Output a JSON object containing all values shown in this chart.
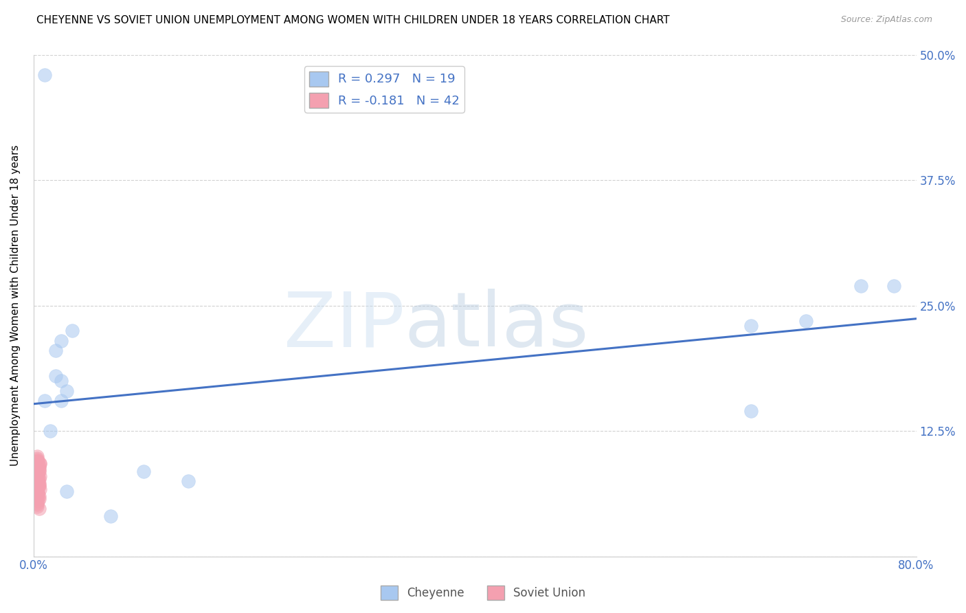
{
  "title": "CHEYENNE VS SOVIET UNION UNEMPLOYMENT AMONG WOMEN WITH CHILDREN UNDER 18 YEARS CORRELATION CHART",
  "source": "Source: ZipAtlas.com",
  "ylabel": "Unemployment Among Women with Children Under 18 years",
  "xlim": [
    0,
    0.8
  ],
  "ylim": [
    0,
    0.5
  ],
  "xticks": [
    0.0,
    0.1,
    0.2,
    0.3,
    0.4,
    0.5,
    0.6,
    0.7,
    0.8
  ],
  "xtick_labels": [
    "0.0%",
    "",
    "",
    "",
    "",
    "",
    "",
    "",
    "80.0%"
  ],
  "ytick_labels": [
    "",
    "12.5%",
    "25.0%",
    "37.5%",
    "50.0%"
  ],
  "yticks": [
    0.0,
    0.125,
    0.25,
    0.375,
    0.5
  ],
  "cheyenne_color": "#a8c8f0",
  "soviet_color": "#f4a0b0",
  "trend_color_cheyenne": "#4472c4",
  "trend_color_soviet": "#e07090",
  "cheyenne_R": 0.297,
  "cheyenne_N": 19,
  "soviet_R": -0.181,
  "soviet_N": 42,
  "legend_label_cheyenne": "Cheyenne",
  "legend_label_soviet": "Soviet Union",
  "cheyenne_x": [
    0.01,
    0.02,
    0.025,
    0.035,
    0.02,
    0.025,
    0.015,
    0.025,
    0.03,
    0.1,
    0.65,
    0.7,
    0.78,
    0.65,
    0.01,
    0.03,
    0.14,
    0.07,
    0.75
  ],
  "cheyenne_y": [
    0.155,
    0.205,
    0.215,
    0.225,
    0.18,
    0.175,
    0.125,
    0.155,
    0.165,
    0.085,
    0.145,
    0.235,
    0.27,
    0.23,
    0.48,
    0.065,
    0.075,
    0.04,
    0.27
  ],
  "soviet_x": [
    0.003,
    0.004,
    0.003,
    0.005,
    0.004,
    0.006,
    0.003,
    0.004,
    0.005,
    0.003,
    0.004,
    0.005,
    0.004,
    0.003,
    0.006,
    0.005,
    0.004,
    0.003,
    0.005,
    0.004,
    0.003,
    0.005,
    0.004,
    0.006,
    0.003,
    0.004,
    0.005,
    0.003,
    0.004,
    0.005,
    0.004,
    0.003,
    0.005,
    0.004,
    0.003,
    0.006,
    0.004,
    0.005,
    0.003,
    0.004,
    0.005,
    0.003
  ],
  "soviet_y": [
    0.09,
    0.095,
    0.1,
    0.085,
    0.075,
    0.08,
    0.07,
    0.065,
    0.09,
    0.095,
    0.077,
    0.073,
    0.083,
    0.087,
    0.093,
    0.06,
    0.055,
    0.065,
    0.07,
    0.075,
    0.05,
    0.057,
    0.063,
    0.067,
    0.053,
    0.081,
    0.088,
    0.096,
    0.059,
    0.071,
    0.079,
    0.091,
    0.048,
    0.062,
    0.084,
    0.092,
    0.069,
    0.077,
    0.052,
    0.074,
    0.086,
    0.098
  ],
  "dot_size": 200,
  "dot_alpha": 0.55,
  "trend_line_start_x": 0.0,
  "trend_line_end_x": 0.8,
  "trend_line_start_y": 0.152,
  "trend_line_end_y": 0.237
}
